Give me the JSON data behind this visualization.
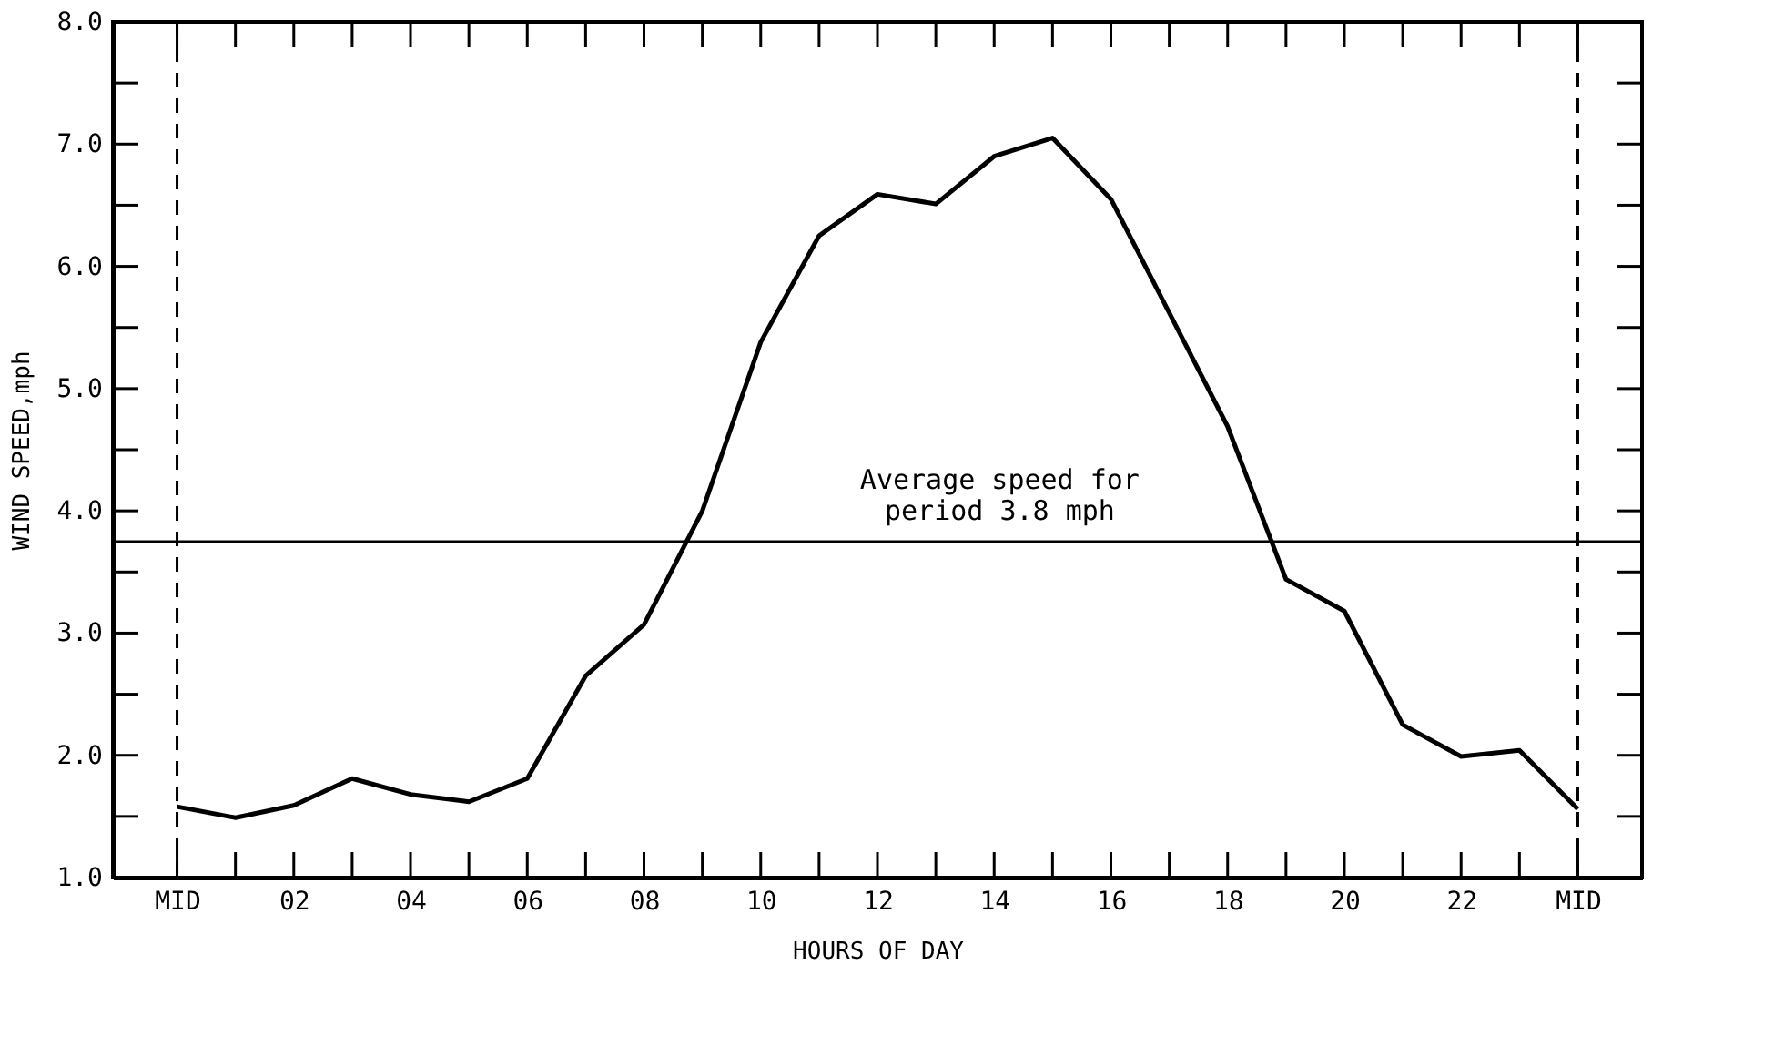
{
  "chart_data": {
    "type": "line",
    "xlabel": "HOURS OF DAY",
    "ylabel": "WIND SPEED,mph",
    "x": [
      0,
      1,
      2,
      3,
      4,
      5,
      6,
      7,
      8,
      9,
      10,
      11,
      12,
      13,
      14,
      15,
      16,
      17,
      18,
      19,
      20,
      21,
      22,
      23,
      24
    ],
    "series": [
      {
        "color": "#000000",
        "values": [
          1.58,
          1.49,
          1.59,
          1.81,
          1.68,
          1.62,
          1.81,
          2.65,
          3.07,
          4.0,
          5.38,
          6.25,
          6.59,
          6.51,
          6.9,
          7.05,
          6.55,
          5.62,
          4.69,
          3.44,
          3.18,
          2.25,
          1.99,
          2.04,
          1.56
        ]
      }
    ],
    "xlim": [
      -1.1,
      25.1
    ],
    "ylim": [
      1.0,
      8.0
    ],
    "xticks": [
      {
        "value": 0,
        "label": "MID"
      },
      {
        "value": 1,
        "label": null
      },
      {
        "value": 2,
        "label": "02"
      },
      {
        "value": 3,
        "label": null
      },
      {
        "value": 4,
        "label": "04"
      },
      {
        "value": 5,
        "label": null
      },
      {
        "value": 6,
        "label": "06"
      },
      {
        "value": 7,
        "label": null
      },
      {
        "value": 8,
        "label": "08"
      },
      {
        "value": 9,
        "label": null
      },
      {
        "value": 10,
        "label": "10"
      },
      {
        "value": 11,
        "label": null
      },
      {
        "value": 12,
        "label": "12"
      },
      {
        "value": 13,
        "label": null
      },
      {
        "value": 14,
        "label": "14"
      },
      {
        "value": 15,
        "label": null
      },
      {
        "value": 16,
        "label": "16"
      },
      {
        "value": 17,
        "label": null
      },
      {
        "value": 18,
        "label": "18"
      },
      {
        "value": 19,
        "label": null
      },
      {
        "value": 20,
        "label": "20"
      },
      {
        "value": 21,
        "label": null
      },
      {
        "value": 22,
        "label": "22"
      },
      {
        "value": 23,
        "label": null
      },
      {
        "value": 24,
        "label": "MID"
      }
    ],
    "yticks": [
      {
        "value": 1.0,
        "label": "1.0"
      },
      {
        "value": 1.5,
        "label": null
      },
      {
        "value": 2.0,
        "label": "2.0"
      },
      {
        "value": 2.5,
        "label": null
      },
      {
        "value": 3.0,
        "label": "3.0"
      },
      {
        "value": 3.5,
        "label": null
      },
      {
        "value": 4.0,
        "label": "4.0"
      },
      {
        "value": 4.5,
        "label": null
      },
      {
        "value": 5.0,
        "label": "5.0"
      },
      {
        "value": 5.5,
        "label": null
      },
      {
        "value": 6.0,
        "label": "6.0"
      },
      {
        "value": 6.5,
        "label": null
      },
      {
        "value": 7.0,
        "label": "7.0"
      },
      {
        "value": 7.5,
        "label": null
      },
      {
        "value": 8.0,
        "label": "8.0"
      }
    ],
    "ref_lines": [
      {
        "axis": "y",
        "value": 3.75,
        "label": "Average speed for\nperiod 3.8 mph",
        "color": "#000000",
        "line_style": "solid"
      },
      {
        "axis": "x",
        "value": 0,
        "label": null,
        "color": "#000000",
        "line_style": "dashed"
      },
      {
        "axis": "x",
        "value": 24,
        "label": null,
        "color": "#000000",
        "line_style": "dashed"
      }
    ],
    "grid": false,
    "marker": "none",
    "line_style": "solid"
  }
}
